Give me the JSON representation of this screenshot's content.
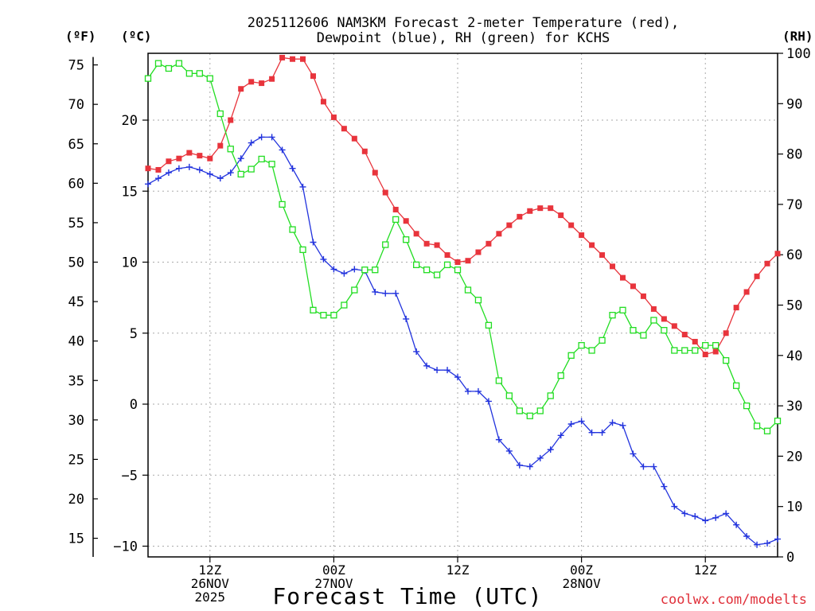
{
  "title_line1": "2025112606 NAM3KM Forecast 2-meter Temperature (red),",
  "title_line2": "Dewpoint (blue), RH (green) for KCHS",
  "unit_f": "(ºF)",
  "unit_c": "(ºC)",
  "unit_rh": "(RH)",
  "credit": "coolwx.com/modelts",
  "chart_data": {
    "type": "line",
    "title": "2025112606 NAM3KM Forecast 2-meter Temperature (red), Dewpoint (blue), RH (green) for KCHS",
    "xlabel": "Forecast Time (UTC)",
    "x_unit": "forecast hour (0 = 2025-11-26 06Z)",
    "xlim": [
      0,
      61
    ],
    "x_ticks": [
      {
        "x": 6,
        "lines": [
          "12Z",
          "26NOV",
          "2025"
        ]
      },
      {
        "x": 18,
        "lines": [
          "00Z",
          "27NOV"
        ]
      },
      {
        "x": 30,
        "lines": [
          "12Z"
        ]
      },
      {
        "x": 42,
        "lines": [
          "00Z",
          "28NOV"
        ]
      },
      {
        "x": 54,
        "lines": [
          "12Z"
        ]
      }
    ],
    "y_celsius": {
      "label": "(ºC)",
      "lim": [
        -10,
        25
      ],
      "ticks": [
        -10,
        -5,
        0,
        5,
        10,
        15,
        20
      ]
    },
    "y_fahrenheit": {
      "label": "(ºF)",
      "ticks": [
        15,
        20,
        25,
        30,
        35,
        40,
        45,
        50,
        55,
        60,
        65,
        70,
        75
      ]
    },
    "y_rh": {
      "label": "(RH)",
      "lim": [
        0,
        100
      ],
      "ticks": [
        0,
        10,
        20,
        30,
        40,
        50,
        60,
        70,
        80,
        90,
        100
      ]
    },
    "grid": true,
    "series": [
      {
        "name": "2-meter Temperature",
        "axis": "celsius",
        "color": "#e8343c",
        "marker": "filled-square",
        "x": [
          0,
          1,
          2,
          3,
          4,
          5,
          6,
          7,
          8,
          9,
          10,
          11,
          12,
          13,
          14,
          15,
          16,
          17,
          18,
          19,
          20,
          21,
          22,
          23,
          24,
          25,
          26,
          27,
          28,
          29,
          30,
          31,
          32,
          33,
          34,
          35,
          36,
          37,
          38,
          39,
          40,
          41,
          42,
          43,
          44,
          45,
          46,
          47,
          48,
          49,
          50,
          51,
          52,
          53,
          54,
          55,
          56,
          57,
          58,
          59,
          60,
          61
        ],
        "values": [
          16.6,
          16.5,
          17.1,
          17.3,
          17.7,
          17.5,
          17.3,
          18.2,
          20.0,
          22.2,
          22.7,
          22.6,
          22.9,
          24.4,
          24.3,
          24.3,
          23.1,
          21.3,
          20.2,
          19.4,
          18.7,
          17.8,
          16.3,
          14.9,
          13.7,
          12.9,
          12.0,
          11.3,
          11.2,
          10.5,
          10.0,
          10.1,
          10.7,
          11.3,
          12.0,
          12.6,
          13.2,
          13.6,
          13.8,
          13.8,
          13.3,
          12.6,
          11.9,
          11.2,
          10.5,
          9.7,
          8.9,
          8.3,
          7.6,
          6.7,
          6.0,
          5.5,
          4.9,
          4.4,
          3.5,
          3.7,
          5.0,
          6.8,
          7.9,
          9.0,
          9.9,
          10.6
        ]
      },
      {
        "name": "Dewpoint",
        "axis": "celsius",
        "color": "#2233dd",
        "marker": "plus",
        "x": [
          0,
          1,
          2,
          3,
          4,
          5,
          6,
          7,
          8,
          9,
          10,
          11,
          12,
          13,
          14,
          15,
          16,
          17,
          18,
          19,
          20,
          21,
          22,
          23,
          24,
          25,
          26,
          27,
          28,
          29,
          30,
          31,
          32,
          33,
          34,
          35,
          36,
          37,
          38,
          39,
          40,
          41,
          42,
          43,
          44,
          45,
          46,
          47,
          48,
          49,
          50,
          51,
          52,
          53,
          54,
          55,
          56,
          57,
          58,
          59,
          60,
          61
        ],
        "values": [
          15.5,
          15.9,
          16.3,
          16.6,
          16.7,
          16.5,
          16.2,
          15.9,
          16.3,
          17.3,
          18.4,
          18.8,
          18.8,
          17.9,
          16.6,
          15.3,
          11.4,
          10.2,
          9.5,
          9.2,
          9.5,
          9.4,
          7.9,
          7.8,
          7.8,
          6.0,
          3.7,
          2.7,
          2.4,
          2.4,
          1.9,
          0.9,
          0.9,
          0.2,
          -2.5,
          -3.3,
          -4.3,
          -4.4,
          -3.8,
          -3.2,
          -2.2,
          -1.4,
          -1.2,
          -2.0,
          -2.0,
          -1.3,
          -1.5,
          -3.5,
          -4.4,
          -4.4,
          -5.8,
          -7.2,
          -7.7,
          -7.9,
          -8.2,
          -8.0,
          -7.7,
          -8.5,
          -9.3,
          -9.9,
          -9.8,
          -9.5
        ]
      },
      {
        "name": "RH",
        "axis": "rh",
        "color": "#22dd22",
        "marker": "open-square",
        "x": [
          0,
          1,
          2,
          3,
          4,
          5,
          6,
          7,
          8,
          9,
          10,
          11,
          12,
          13,
          14,
          15,
          16,
          17,
          18,
          19,
          20,
          21,
          22,
          23,
          24,
          25,
          26,
          27,
          28,
          29,
          30,
          31,
          32,
          33,
          34,
          35,
          36,
          37,
          38,
          39,
          40,
          41,
          42,
          43,
          44,
          45,
          46,
          47,
          48,
          49,
          50,
          51,
          52,
          53,
          54,
          55,
          56,
          57,
          58,
          59,
          60,
          61
        ],
        "values": [
          95,
          98,
          97,
          98,
          96,
          96,
          95,
          88,
          81,
          76,
          77,
          79,
          78,
          70,
          65,
          61,
          49,
          48,
          48,
          50,
          53,
          57,
          57,
          62,
          67,
          63,
          58,
          57,
          56,
          58,
          57,
          53,
          51,
          46,
          35,
          32,
          29,
          28,
          29,
          32,
          36,
          40,
          42,
          41,
          43,
          48,
          49,
          45,
          44,
          47,
          45,
          41,
          41,
          41,
          42,
          42,
          39,
          34,
          30,
          26,
          25,
          27
        ]
      }
    ]
  }
}
